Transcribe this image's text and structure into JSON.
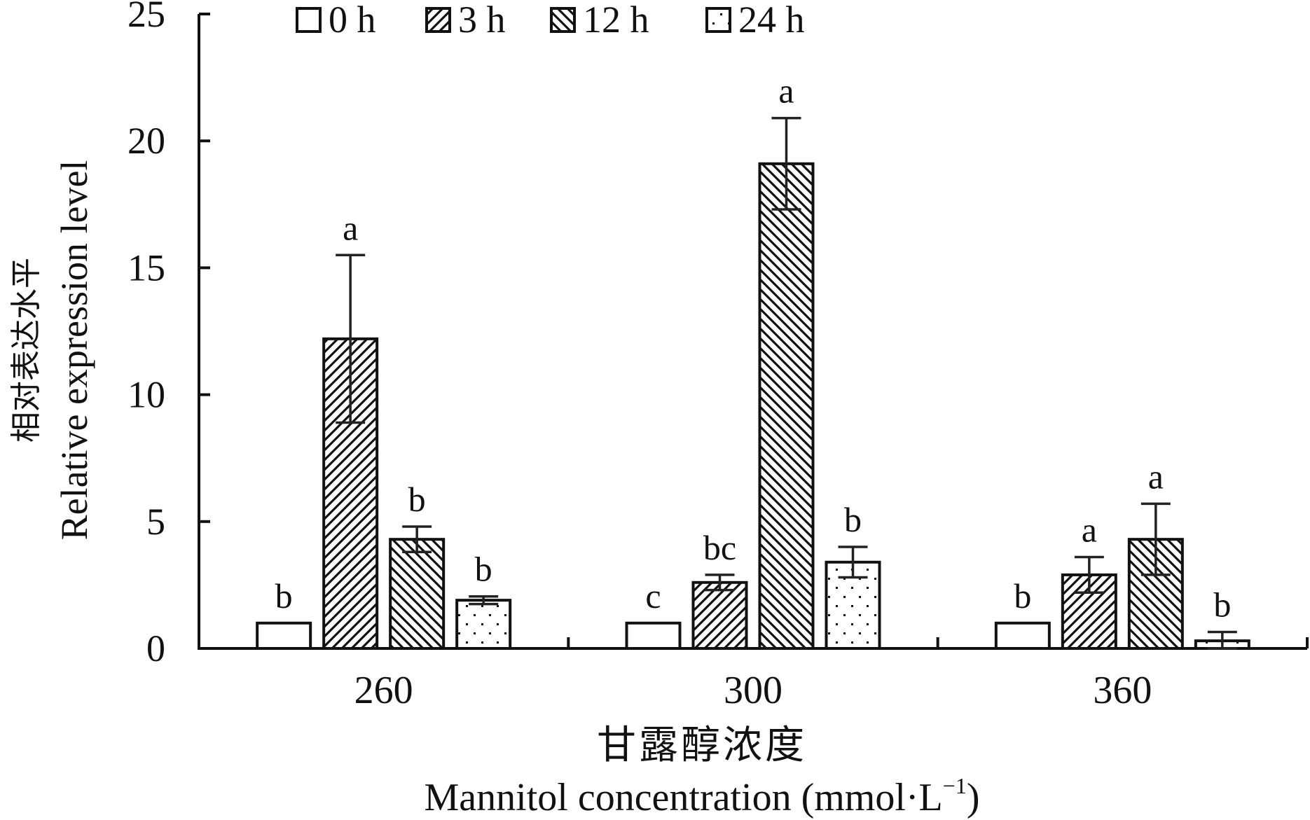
{
  "chart_data": {
    "type": "bar",
    "ylabel_cn": "相对表达水平",
    "ylabel_en": "Relative expression level",
    "xlabel_cn": "甘露醇浓度",
    "xlabel_en_main": "Mannitol concentration (mmol·L",
    "xlabel_en_sup": "−1",
    "xlabel_en_close": ")",
    "ylim": [
      0,
      25
    ],
    "yticks": [
      "0",
      "5",
      "10",
      "15",
      "20",
      "25"
    ],
    "categories": [
      "260",
      "300",
      "360"
    ],
    "series": [
      {
        "name": "0 h",
        "pattern": "none",
        "values": [
          1.0,
          1.0,
          1.0
        ],
        "errors": [
          0.0,
          0.0,
          0.0
        ],
        "labels": [
          "b",
          "c",
          "b"
        ]
      },
      {
        "name": "3 h",
        "pattern": "fwd",
        "values": [
          12.2,
          2.6,
          2.9
        ],
        "errors": [
          3.3,
          0.3,
          0.7
        ],
        "labels": [
          "a",
          "bc",
          "a"
        ]
      },
      {
        "name": "12 h",
        "pattern": "back",
        "values": [
          4.3,
          19.1,
          4.3
        ],
        "errors": [
          0.5,
          1.8,
          1.4
        ],
        "labels": [
          "b",
          "a",
          "a"
        ]
      },
      {
        "name": "24 h",
        "pattern": "dots",
        "values": [
          1.9,
          3.4,
          0.3
        ],
        "errors": [
          0.15,
          0.6,
          0.35
        ],
        "labels": [
          "b",
          "b",
          "b"
        ]
      }
    ],
    "grid": false,
    "legend_position": "top"
  }
}
